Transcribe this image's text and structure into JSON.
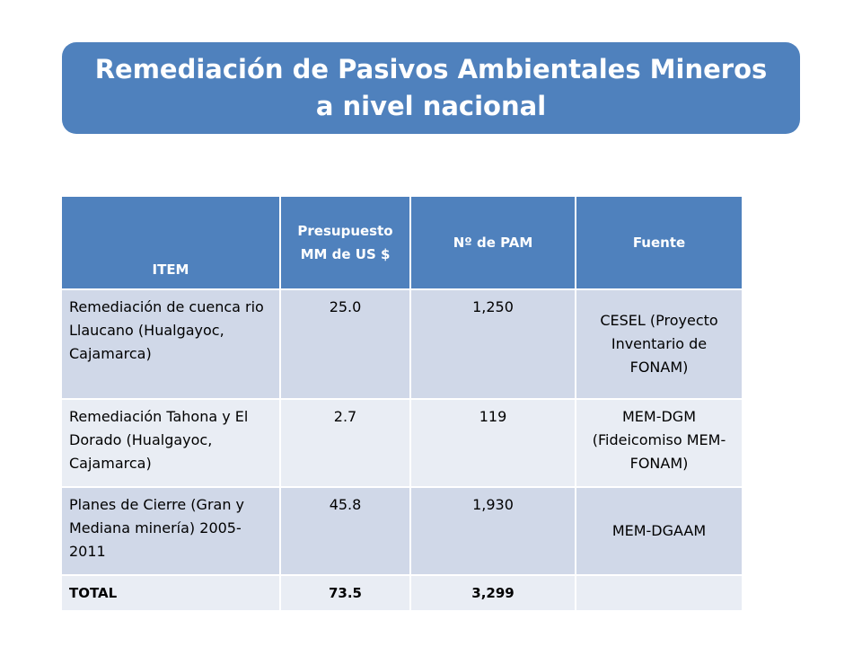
{
  "slide": {
    "title": "Remediación de Pasivos Ambientales Mineros a nivel nacional"
  },
  "table": {
    "headers": {
      "item": "ITEM",
      "presupuesto": "Presupuesto MM de US $",
      "num_pam": "Nº  de PAM",
      "fuente": "Fuente"
    },
    "rows": [
      {
        "item": "Remediación de cuenca rio Llaucano (Hualgayoc, Cajamarca)",
        "presupuesto": "25.0",
        "num_pam": "1,250",
        "fuente": "CESEL (Proyecto Inventario de FONAM)"
      },
      {
        "item": "Remediación Tahona y El Dorado (Hualgayoc, Cajamarca)",
        "presupuesto": "2.7",
        "num_pam": "119",
        "fuente": "MEM-DGM (Fideicomiso MEM-FONAM)"
      },
      {
        "item": "Planes de Cierre (Gran y Mediana minería) 2005-2011",
        "presupuesto": "45.8",
        "num_pam": "1,930",
        "fuente": "MEM-DGAAM"
      }
    ],
    "total": {
      "item": "TOTAL",
      "presupuesto": "73.5",
      "num_pam": "3,299",
      "fuente": ""
    }
  },
  "colors": {
    "accent": "#4f81bd",
    "row_dark": "#d0d8e8",
    "row_light": "#e9edf4"
  }
}
